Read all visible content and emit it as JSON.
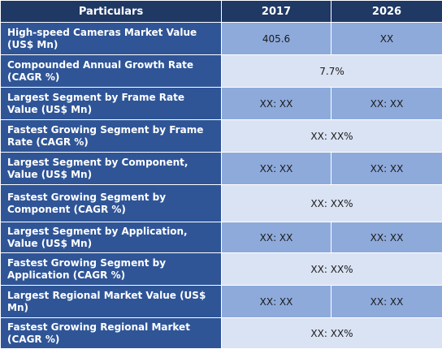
{
  "table": {
    "headers": [
      "Particulars",
      "2017",
      "2026"
    ],
    "rows": [
      {
        "label": "High-speed Cameras Market Value (US$ Mn)",
        "v2017": "405.6",
        "v2026": "XX"
      },
      {
        "label": "Compounded Annual Growth Rate (CAGR %)",
        "merged": "7.7%"
      },
      {
        "label": "Largest Segment by Frame Rate Value (US$ Mn)",
        "v2017": "XX: XX",
        "v2026": "XX:  XX"
      },
      {
        "label": "Fastest Growing Segment by Frame Rate (CAGR %)",
        "merged": "XX:  XX%"
      },
      {
        "label": "Largest Segment by Component, Value (US$ Mn)",
        "v2017": "XX: XX",
        "v2026": "XX:  XX"
      },
      {
        "label": "Fastest Growing Segment by Component (CAGR %)",
        "merged": "XX:  XX%"
      },
      {
        "label": "Largest Segment by Application, Value (US$ Mn)",
        "v2017": "XX: XX",
        "v2026": "XX:  XX"
      },
      {
        "label": "Fastest Growing Segment by Application (CAGR %)",
        "merged": "XX:  XX%"
      },
      {
        "label": "Largest Regional Market Value (US$ Mn)",
        "v2017": "XX: XX",
        "v2026": "XX: XX"
      },
      {
        "label": "Fastest Growing Regional Market (CAGR %)",
        "merged": "XX: XX%"
      }
    ]
  },
  "colors": {
    "header_bg": "#1f3864",
    "label_bg": "#2f5597",
    "value_dark_bg": "#8eaadb",
    "value_light_bg": "#dae3f3"
  }
}
